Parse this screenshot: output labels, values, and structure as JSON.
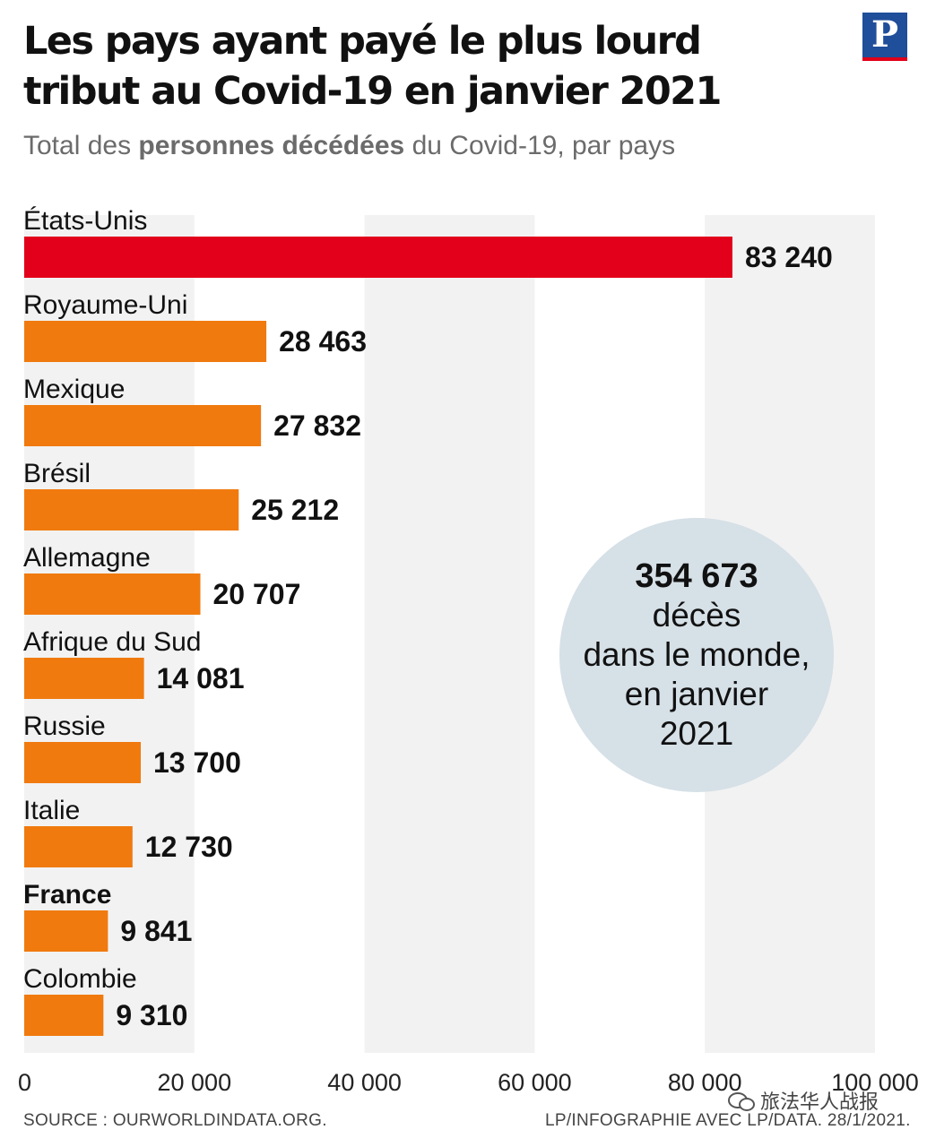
{
  "header": {
    "title_line1": "Les pays ayant payé le plus lourd",
    "title_line2": "tribut au Covid-19 en janvier 2021",
    "subtitle_pre": "Total des ",
    "subtitle_bold": "personnes décédées",
    "subtitle_post": " du Covid-19, par pays",
    "logo_letter": "P"
  },
  "chart_data": {
    "type": "bar",
    "orientation": "horizontal",
    "categories": [
      "États-Unis",
      "Royaume-Uni",
      "Mexique",
      "Brésil",
      "Allemagne",
      "Afrique du Sud",
      "Russie",
      "Italie",
      "France",
      "Colombie"
    ],
    "values": [
      83240,
      28463,
      27832,
      25212,
      20707,
      14081,
      13700,
      12730,
      9841,
      9310
    ],
    "value_labels": [
      "83 240",
      "28 463",
      "27 832",
      "25 212",
      "20 707",
      "14 081",
      "13 700",
      "12 730",
      "9 841",
      "9 310"
    ],
    "highlight_category": "France",
    "xlim": [
      0,
      100000
    ],
    "xticks": [
      0,
      20000,
      40000,
      60000,
      80000,
      100000
    ],
    "xtick_labels": [
      "0",
      "20 000",
      "40 000",
      "60 000",
      "80 000",
      "100 000"
    ],
    "grid": "alternating vertical bands",
    "colors": {
      "top_bar": "#e2001a",
      "bar": "#f07a0e",
      "band": "#f2f2f2"
    }
  },
  "callout": {
    "number": "354 673",
    "line1": "décès",
    "line2": "dans le monde,",
    "line3": "en janvier",
    "line4": "2021"
  },
  "footer": {
    "source": "SOURCE : OURWORLDINDATA.ORG.",
    "credit": "LP/INFOGRAPHIE AVEC LP/DATA. 28/1/2021."
  },
  "watermark": {
    "text": "旅法华人战报",
    "icon": "wechat-icon"
  }
}
